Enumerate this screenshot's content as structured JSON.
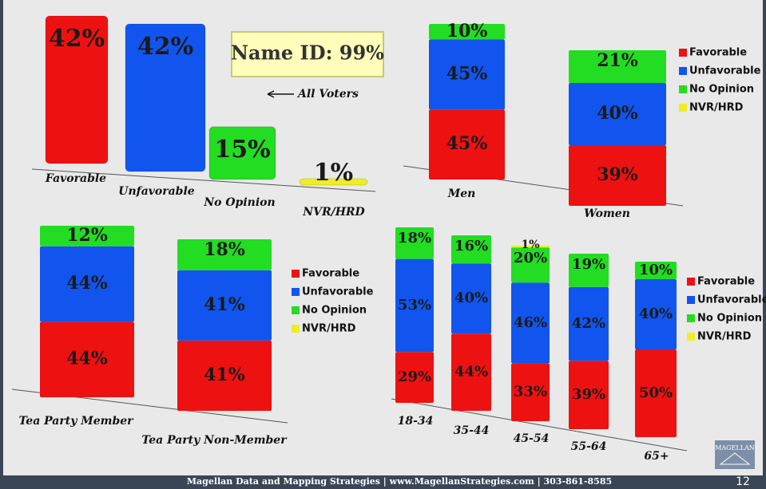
{
  "chart_data": [
    {
      "type": "bar",
      "categories": [
        "Favorable",
        "Unfavorable",
        "No Opinion",
        "NVR/HRD"
      ],
      "values": [
        42,
        42,
        15,
        1
      ],
      "value_labels": [
        "42%",
        "42%",
        "15%",
        "1%"
      ],
      "colors": [
        "#ee1111",
        "#1155ee",
        "#22dd22",
        "#eeee22"
      ],
      "annotations": [
        "Name ID: 99%",
        "All Voters"
      ]
    },
    {
      "type": "stacked_bar",
      "categories": [
        "Men",
        "Women"
      ],
      "series": [
        {
          "name": "Favorable",
          "color": "#ee1111",
          "values": [
            45,
            39
          ],
          "value_labels": [
            "45%",
            "39%"
          ]
        },
        {
          "name": "Unfavorable",
          "color": "#1155ee",
          "values": [
            45,
            40
          ],
          "value_labels": [
            "45%",
            "40%"
          ]
        },
        {
          "name": "No Opinion",
          "color": "#22dd22",
          "values": [
            10,
            21
          ],
          "value_labels": [
            "10%",
            "21%"
          ]
        },
        {
          "name": "NVR/HRD",
          "color": "#eeee22",
          "values": [
            0,
            0
          ]
        }
      ]
    },
    {
      "type": "stacked_bar",
      "categories": [
        "Tea Party Member",
        "Tea Party Non-Member"
      ],
      "series": [
        {
          "name": "Favorable",
          "color": "#ee1111",
          "values": [
            44,
            41
          ],
          "value_labels": [
            "44%",
            "41%"
          ]
        },
        {
          "name": "Unfavorable",
          "color": "#1155ee",
          "values": [
            44,
            41
          ],
          "value_labels": [
            "44%",
            "41%"
          ]
        },
        {
          "name": "No Opinion",
          "color": "#22dd22",
          "values": [
            12,
            18
          ],
          "value_labels": [
            "12%",
            "18%"
          ]
        },
        {
          "name": "NVR/HRD",
          "color": "#eeee22",
          "values": [
            0,
            0
          ]
        }
      ]
    },
    {
      "type": "stacked_bar",
      "categories": [
        "18-34",
        "35-44",
        "45-54",
        "55-64",
        "65+"
      ],
      "series": [
        {
          "name": "Favorable",
          "color": "#ee1111",
          "values": [
            29,
            44,
            33,
            39,
            50
          ],
          "value_labels": [
            "29%",
            "44%",
            "33%",
            "39%",
            "50%"
          ]
        },
        {
          "name": "Unfavorable",
          "color": "#1155ee",
          "values": [
            53,
            40,
            46,
            42,
            40
          ],
          "value_labels": [
            "53%",
            "40%",
            "46%",
            "42%",
            "40%"
          ]
        },
        {
          "name": "No Opinion",
          "color": "#22dd22",
          "values": [
            18,
            16,
            20,
            19,
            10
          ],
          "value_labels": [
            "18%",
            "16%",
            "20%",
            "19%",
            "10%"
          ]
        },
        {
          "name": "NVR/HRD",
          "color": "#eeee22",
          "values": [
            0,
            0,
            1,
            0,
            0
          ],
          "value_labels": [
            null,
            null,
            "1%",
            null,
            null
          ]
        }
      ]
    }
  ],
  "footer": "Magellan Data and Mapping Strategies | www.MagellanStrategies.com | 303-861-8585",
  "page_number": "12",
  "logo": "MAGELLAN"
}
